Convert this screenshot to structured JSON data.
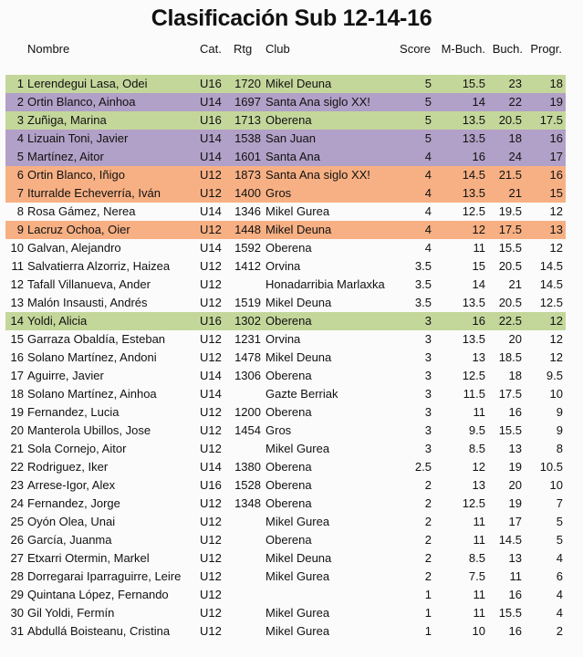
{
  "title": "Clasificación Sub 12-14-16",
  "headers": {
    "name": "Nombre",
    "cat": "Cat.",
    "rtg": "Rtg",
    "club": "Club",
    "score": "Score",
    "mbuch": "M-Buch.",
    "buch": "Buch.",
    "progr": "Progr."
  },
  "colors": {
    "U16_highlight": "#c4d79b",
    "U14_highlight": "#b1a0c7",
    "U12_highlight": "#f7b084"
  },
  "rows": [
    {
      "pos": "1",
      "name": "Lerendegui Lasa, Odei",
      "cat": "U16",
      "rtg": "1720",
      "club": "Mikel Deuna",
      "score": "5",
      "mbuch": "15.5",
      "buch": "23",
      "progr": "18",
      "highlight": "U16_highlight"
    },
    {
      "pos": "2",
      "name": "Ortin Blanco, Ainhoa",
      "cat": "U14",
      "rtg": "1697",
      "club": "Santa Ana siglo XX!",
      "score": "5",
      "mbuch": "14",
      "buch": "22",
      "progr": "19",
      "highlight": "U14_highlight"
    },
    {
      "pos": "3",
      "name": "Zuñiga, Marina",
      "cat": "U16",
      "rtg": "1713",
      "club": "Oberena",
      "score": "5",
      "mbuch": "13.5",
      "buch": "20.5",
      "progr": "17.5",
      "highlight": "U16_highlight"
    },
    {
      "pos": "4",
      "name": "Lizuain Toni, Javier",
      "cat": "U14",
      "rtg": "1538",
      "club": "San Juan",
      "score": "5",
      "mbuch": "13.5",
      "buch": "18",
      "progr": "16",
      "highlight": "U14_highlight"
    },
    {
      "pos": "5",
      "name": "Martínez, Aitor",
      "cat": "U14",
      "rtg": "1601",
      "club": "Santa Ana",
      "score": "4",
      "mbuch": "16",
      "buch": "24",
      "progr": "17",
      "highlight": "U14_highlight"
    },
    {
      "pos": "6",
      "name": "Ortin Blanco, Iñigo",
      "cat": "U12",
      "rtg": "1873",
      "club": "Santa Ana siglo XX!",
      "score": "4",
      "mbuch": "14.5",
      "buch": "21.5",
      "progr": "16",
      "highlight": "U12_highlight"
    },
    {
      "pos": "7",
      "name": "Iturralde Echeverría, Iván",
      "cat": "U12",
      "rtg": "1400",
      "club": "Gros",
      "score": "4",
      "mbuch": "13.5",
      "buch": "21",
      "progr": "15",
      "highlight": "U12_highlight"
    },
    {
      "pos": "8",
      "name": "Rosa Gámez, Nerea",
      "cat": "U14",
      "rtg": "1346",
      "club": "Mikel Gurea",
      "score": "4",
      "mbuch": "12.5",
      "buch": "19.5",
      "progr": "12"
    },
    {
      "pos": "9",
      "name": "Lacruz Ochoa, Oier",
      "cat": "U12",
      "rtg": "1448",
      "club": "Mikel Deuna",
      "score": "4",
      "mbuch": "12",
      "buch": "17.5",
      "progr": "13",
      "highlight": "U12_highlight"
    },
    {
      "pos": "10",
      "name": "Galvan, Alejandro",
      "cat": "U14",
      "rtg": "1592",
      "club": "Oberena",
      "score": "4",
      "mbuch": "11",
      "buch": "15.5",
      "progr": "12"
    },
    {
      "pos": "11",
      "name": "Salvatierra Alzorriz, Haizea",
      "cat": "U12",
      "rtg": "1412",
      "club": "Orvina",
      "score": "3.5",
      "mbuch": "15",
      "buch": "20.5",
      "progr": "14.5"
    },
    {
      "pos": "12",
      "name": "Tafall Villanueva, Ander",
      "cat": "U12",
      "rtg": "",
      "club": "Honadarribia Marlaxka",
      "score": "3.5",
      "mbuch": "14",
      "buch": "21",
      "progr": "14.5"
    },
    {
      "pos": "13",
      "name": "Malón Insausti, Andrés",
      "cat": "U12",
      "rtg": "1519",
      "club": "Mikel Deuna",
      "score": "3.5",
      "mbuch": "13.5",
      "buch": "20.5",
      "progr": "12.5"
    },
    {
      "pos": "14",
      "name": "Yoldi, Alicia",
      "cat": "U16",
      "rtg": "1302",
      "club": "Oberena",
      "score": "3",
      "mbuch": "16",
      "buch": "22.5",
      "progr": "12",
      "highlight": "U16_highlight"
    },
    {
      "pos": "15",
      "name": "Garraza Obaldía, Esteban",
      "cat": "U12",
      "rtg": "1231",
      "club": "Orvina",
      "score": "3",
      "mbuch": "13.5",
      "buch": "20",
      "progr": "12"
    },
    {
      "pos": "16",
      "name": "Solano Martínez, Andoni",
      "cat": "U12",
      "rtg": "1478",
      "club": "Mikel Deuna",
      "score": "3",
      "mbuch": "13",
      "buch": "18.5",
      "progr": "12"
    },
    {
      "pos": "17",
      "name": "Aguirre, Javier",
      "cat": "U14",
      "rtg": "1306",
      "club": "Oberena",
      "score": "3",
      "mbuch": "12.5",
      "buch": "18",
      "progr": "9.5"
    },
    {
      "pos": "18",
      "name": "Solano Martínez, Ainhoa",
      "cat": "U14",
      "rtg": "",
      "club": "Gazte Berriak",
      "score": "3",
      "mbuch": "11.5",
      "buch": "17.5",
      "progr": "10"
    },
    {
      "pos": "19",
      "name": "Fernandez, Lucia",
      "cat": "U12",
      "rtg": "1200",
      "club": "Oberena",
      "score": "3",
      "mbuch": "11",
      "buch": "16",
      "progr": "9"
    },
    {
      "pos": "20",
      "name": "Manterola Ubillos, Jose",
      "cat": "U12",
      "rtg": "1454",
      "club": "Gros",
      "score": "3",
      "mbuch": "9.5",
      "buch": "15.5",
      "progr": "9"
    },
    {
      "pos": "21",
      "name": "Sola Cornejo, Aitor",
      "cat": "U12",
      "rtg": "",
      "club": "Mikel Gurea",
      "score": "3",
      "mbuch": "8.5",
      "buch": "13",
      "progr": "8"
    },
    {
      "pos": "22",
      "name": "Rodriguez, Iker",
      "cat": "U14",
      "rtg": "1380",
      "club": "Oberena",
      "score": "2.5",
      "mbuch": "12",
      "buch": "19",
      "progr": "10.5"
    },
    {
      "pos": "23",
      "name": "Arrese-Igor, Alex",
      "cat": "U16",
      "rtg": "1528",
      "club": "Oberena",
      "score": "2",
      "mbuch": "13",
      "buch": "20",
      "progr": "10"
    },
    {
      "pos": "24",
      "name": "Fernandez, Jorge",
      "cat": "U12",
      "rtg": "1348",
      "club": "Oberena",
      "score": "2",
      "mbuch": "12.5",
      "buch": "19",
      "progr": "7"
    },
    {
      "pos": "25",
      "name": "Oyón Olea, Unai",
      "cat": "U12",
      "rtg": "",
      "club": "Mikel Gurea",
      "score": "2",
      "mbuch": "11",
      "buch": "17",
      "progr": "5"
    },
    {
      "pos": "26",
      "name": "García, Juanma",
      "cat": "U12",
      "rtg": "",
      "club": "Oberena",
      "score": "2",
      "mbuch": "11",
      "buch": "14.5",
      "progr": "5"
    },
    {
      "pos": "27",
      "name": "Etxarri Otermin, Markel",
      "cat": "U12",
      "rtg": "",
      "club": "Mikel Deuna",
      "score": "2",
      "mbuch": "8.5",
      "buch": "13",
      "progr": "4"
    },
    {
      "pos": "28",
      "name": "Dorregarai Iparraguirre, Leire",
      "cat": "U12",
      "rtg": "",
      "club": "Mikel Gurea",
      "score": "2",
      "mbuch": "7.5",
      "buch": "11",
      "progr": "6"
    },
    {
      "pos": "29",
      "name": "Quintana López, Fernando",
      "cat": "U12",
      "rtg": "",
      "club": "",
      "score": "1",
      "mbuch": "11",
      "buch": "16",
      "progr": "4"
    },
    {
      "pos": "30",
      "name": "Gil Yoldi, Fermín",
      "cat": "U12",
      "rtg": "",
      "club": "Mikel Gurea",
      "score": "1",
      "mbuch": "11",
      "buch": "15.5",
      "progr": "4"
    },
    {
      "pos": "31",
      "name": "Abdullá Boisteanu, Cristina",
      "cat": "U12",
      "rtg": "",
      "club": "Mikel Gurea",
      "score": "1",
      "mbuch": "10",
      "buch": "16",
      "progr": "2"
    }
  ]
}
